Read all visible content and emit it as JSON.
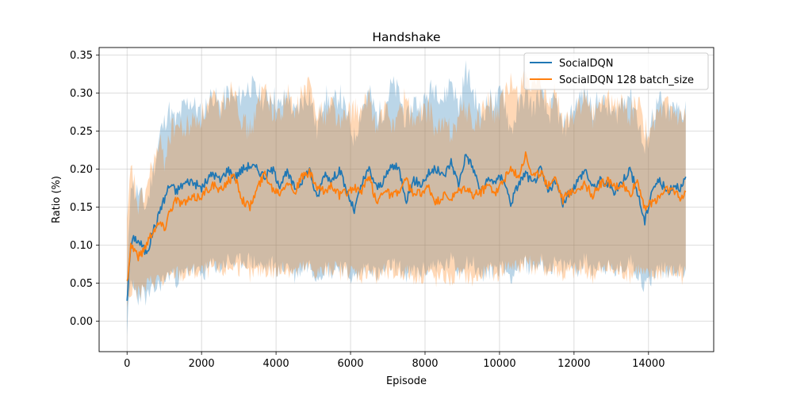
{
  "chart_data": {
    "type": "line",
    "title": "Handshake",
    "xlabel": "Episode",
    "ylabel": "Ratio (%)",
    "xlim": [
      -750,
      15750
    ],
    "ylim": [
      -0.04,
      0.36
    ],
    "xticks": [
      0,
      2000,
      4000,
      6000,
      8000,
      10000,
      12000,
      14000
    ],
    "yticks": [
      0.0,
      0.05,
      0.1,
      0.15,
      0.2,
      0.25,
      0.3,
      0.35
    ],
    "grid": true,
    "legend_position": "top-right",
    "series": [
      {
        "name": "SocialDQN",
        "color": "#1f77b4",
        "band_color": "#1f77b4",
        "x": [
          0,
          100,
          200,
          300,
          400,
          500,
          600,
          700,
          800,
          900,
          1000,
          1100,
          1200,
          1300,
          1500,
          1700,
          2000,
          2300,
          2500,
          2700,
          2900,
          3100,
          3300,
          3500,
          3700,
          3900,
          4100,
          4300,
          4500,
          4700,
          4900,
          5100,
          5300,
          5500,
          5700,
          5900,
          6100,
          6300,
          6500,
          6700,
          6900,
          7100,
          7300,
          7500,
          7700,
          7900,
          8100,
          8300,
          8500,
          8700,
          8900,
          9100,
          9300,
          9500,
          9700,
          9900,
          10100,
          10300,
          10500,
          10700,
          10900,
          11100,
          11300,
          11500,
          11700,
          11900,
          12100,
          12300,
          12500,
          12700,
          12900,
          13100,
          13300,
          13500,
          13700,
          13900,
          14100,
          14300,
          14500,
          14700,
          14900,
          15000
        ],
        "mean": [
          0.03,
          0.1,
          0.11,
          0.105,
          0.1,
          0.09,
          0.1,
          0.12,
          0.13,
          0.15,
          0.16,
          0.175,
          0.18,
          0.17,
          0.18,
          0.185,
          0.175,
          0.195,
          0.185,
          0.2,
          0.19,
          0.2,
          0.205,
          0.2,
          0.19,
          0.2,
          0.18,
          0.195,
          0.175,
          0.185,
          0.2,
          0.16,
          0.195,
          0.185,
          0.2,
          0.17,
          0.145,
          0.18,
          0.2,
          0.175,
          0.185,
          0.205,
          0.2,
          0.16,
          0.185,
          0.18,
          0.195,
          0.2,
          0.19,
          0.21,
          0.18,
          0.22,
          0.2,
          0.17,
          0.185,
          0.185,
          0.19,
          0.155,
          0.18,
          0.195,
          0.18,
          0.2,
          0.17,
          0.185,
          0.155,
          0.17,
          0.185,
          0.2,
          0.175,
          0.185,
          0.18,
          0.17,
          0.185,
          0.2,
          0.17,
          0.13,
          0.175,
          0.185,
          0.17,
          0.18,
          0.175,
          0.19
        ],
        "low": [
          -0.01,
          0.05,
          0.04,
          0.03,
          0.04,
          0.03,
          0.035,
          0.04,
          0.045,
          0.05,
          0.055,
          0.06,
          0.065,
          0.055,
          0.06,
          0.07,
          0.06,
          0.075,
          0.07,
          0.08,
          0.075,
          0.08,
          0.08,
          0.075,
          0.07,
          0.075,
          0.065,
          0.075,
          0.06,
          0.07,
          0.075,
          0.06,
          0.07,
          0.065,
          0.075,
          0.065,
          0.055,
          0.065,
          0.075,
          0.06,
          0.065,
          0.075,
          0.07,
          0.06,
          0.065,
          0.065,
          0.07,
          0.075,
          0.07,
          0.08,
          0.065,
          0.08,
          0.075,
          0.06,
          0.065,
          0.07,
          0.07,
          0.06,
          0.07,
          0.075,
          0.07,
          0.08,
          0.07,
          0.075,
          0.07,
          0.075,
          0.07,
          0.08,
          0.07,
          0.075,
          0.07,
          0.065,
          0.07,
          0.08,
          0.065,
          0.045,
          0.06,
          0.07,
          0.065,
          0.07,
          0.065,
          0.07
        ],
        "high": [
          0.05,
          0.19,
          0.17,
          0.17,
          0.16,
          0.15,
          0.17,
          0.2,
          0.22,
          0.25,
          0.26,
          0.28,
          0.27,
          0.26,
          0.28,
          0.29,
          0.27,
          0.3,
          0.28,
          0.3,
          0.29,
          0.3,
          0.31,
          0.3,
          0.29,
          0.3,
          0.28,
          0.3,
          0.27,
          0.29,
          0.3,
          0.25,
          0.3,
          0.28,
          0.3,
          0.27,
          0.24,
          0.28,
          0.3,
          0.27,
          0.28,
          0.31,
          0.3,
          0.26,
          0.29,
          0.28,
          0.3,
          0.31,
          0.29,
          0.32,
          0.28,
          0.33,
          0.3,
          0.27,
          0.29,
          0.29,
          0.3,
          0.25,
          0.28,
          0.3,
          0.28,
          0.3,
          0.27,
          0.29,
          0.25,
          0.27,
          0.29,
          0.3,
          0.28,
          0.29,
          0.28,
          0.27,
          0.29,
          0.3,
          0.27,
          0.22,
          0.27,
          0.29,
          0.27,
          0.28,
          0.27,
          0.29
        ]
      },
      {
        "name": "SocialDQN 128 batch_size",
        "color": "#ff7f0e",
        "band_color": "#ff7f0e",
        "x": [
          0,
          100,
          200,
          300,
          400,
          500,
          600,
          700,
          800,
          900,
          1000,
          1100,
          1200,
          1300,
          1500,
          1700,
          2000,
          2300,
          2500,
          2700,
          2900,
          3100,
          3300,
          3500,
          3700,
          3900,
          4100,
          4300,
          4500,
          4700,
          4900,
          5100,
          5300,
          5500,
          5700,
          5900,
          6100,
          6300,
          6500,
          6700,
          6900,
          7100,
          7300,
          7500,
          7700,
          7900,
          8100,
          8300,
          8500,
          8700,
          8900,
          9100,
          9300,
          9500,
          9700,
          9900,
          10100,
          10300,
          10500,
          10700,
          10900,
          11100,
          11300,
          11500,
          11700,
          11900,
          12100,
          12300,
          12500,
          12700,
          12900,
          13100,
          13300,
          13500,
          13700,
          13900,
          14100,
          14300,
          14500,
          14700,
          14900,
          15000
        ],
        "mean": [
          0.05,
          0.1,
          0.095,
          0.085,
          0.09,
          0.1,
          0.11,
          0.12,
          0.125,
          0.13,
          0.12,
          0.14,
          0.15,
          0.16,
          0.155,
          0.16,
          0.165,
          0.18,
          0.17,
          0.185,
          0.19,
          0.16,
          0.15,
          0.175,
          0.195,
          0.175,
          0.17,
          0.185,
          0.17,
          0.19,
          0.195,
          0.175,
          0.17,
          0.18,
          0.165,
          0.17,
          0.175,
          0.17,
          0.19,
          0.155,
          0.175,
          0.165,
          0.17,
          0.185,
          0.165,
          0.17,
          0.175,
          0.155,
          0.165,
          0.16,
          0.17,
          0.175,
          0.165,
          0.17,
          0.18,
          0.17,
          0.185,
          0.2,
          0.19,
          0.22,
          0.19,
          0.195,
          0.18,
          0.19,
          0.16,
          0.17,
          0.175,
          0.18,
          0.165,
          0.18,
          0.185,
          0.175,
          0.18,
          0.165,
          0.185,
          0.15,
          0.155,
          0.165,
          0.175,
          0.17,
          0.16,
          0.17
        ],
        "low": [
          0.02,
          0.04,
          0.045,
          0.035,
          0.04,
          0.045,
          0.05,
          0.055,
          0.055,
          0.055,
          0.05,
          0.055,
          0.06,
          0.065,
          0.06,
          0.065,
          0.065,
          0.07,
          0.065,
          0.07,
          0.075,
          0.065,
          0.06,
          0.065,
          0.07,
          0.065,
          0.065,
          0.07,
          0.065,
          0.07,
          0.07,
          0.065,
          0.065,
          0.07,
          0.065,
          0.065,
          0.065,
          0.06,
          0.07,
          0.055,
          0.065,
          0.06,
          0.065,
          0.065,
          0.06,
          0.06,
          0.065,
          0.055,
          0.06,
          0.055,
          0.06,
          0.06,
          0.055,
          0.06,
          0.065,
          0.06,
          0.07,
          0.075,
          0.07,
          0.08,
          0.07,
          0.075,
          0.065,
          0.07,
          0.06,
          0.065,
          0.065,
          0.065,
          0.06,
          0.065,
          0.07,
          0.065,
          0.065,
          0.06,
          0.07,
          0.06,
          0.06,
          0.065,
          0.065,
          0.065,
          0.06,
          0.065
        ],
        "high": [
          0.12,
          0.2,
          0.18,
          0.15,
          0.16,
          0.17,
          0.19,
          0.21,
          0.22,
          0.23,
          0.21,
          0.24,
          0.25,
          0.26,
          0.25,
          0.26,
          0.27,
          0.29,
          0.28,
          0.3,
          0.31,
          0.26,
          0.25,
          0.28,
          0.31,
          0.28,
          0.27,
          0.3,
          0.27,
          0.3,
          0.31,
          0.28,
          0.27,
          0.29,
          0.26,
          0.27,
          0.28,
          0.27,
          0.3,
          0.25,
          0.28,
          0.26,
          0.27,
          0.3,
          0.26,
          0.27,
          0.28,
          0.25,
          0.26,
          0.25,
          0.27,
          0.28,
          0.26,
          0.27,
          0.29,
          0.27,
          0.29,
          0.31,
          0.3,
          0.33,
          0.3,
          0.31,
          0.28,
          0.3,
          0.26,
          0.27,
          0.28,
          0.29,
          0.27,
          0.29,
          0.29,
          0.28,
          0.29,
          0.27,
          0.29,
          0.25,
          0.26,
          0.27,
          0.28,
          0.27,
          0.26,
          0.27
        ]
      }
    ]
  }
}
